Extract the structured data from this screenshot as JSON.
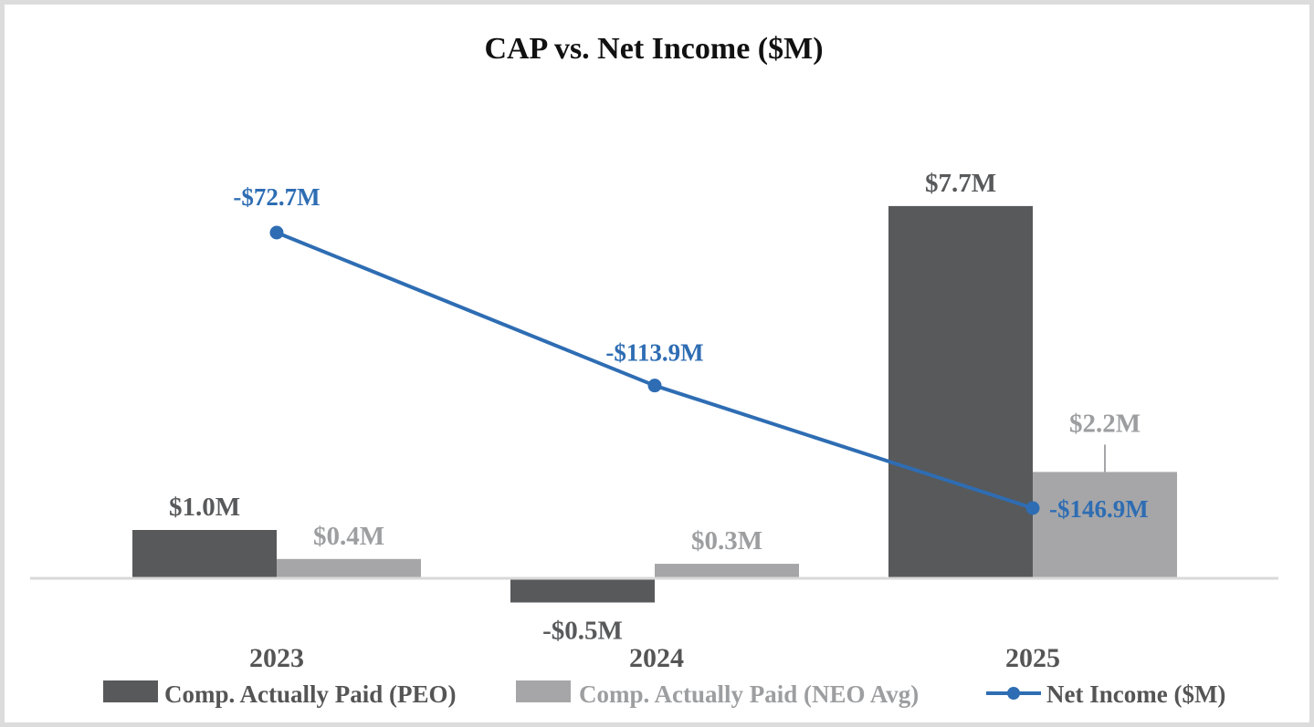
{
  "chart_data": {
    "type": "bar",
    "title": "CAP vs. Net Income ($M)",
    "categories": [
      "2023",
      "2024",
      "2025"
    ],
    "series": [
      {
        "name": "Comp. Actually Paid (PEO)",
        "kind": "bar",
        "color": "#58595b",
        "label_color": "#58595b",
        "values": [
          1.0,
          -0.5,
          7.7
        ],
        "labels": [
          "$1.0M",
          "-$0.5M",
          "$7.7M"
        ]
      },
      {
        "name": "Comp. Actually Paid (NEO Avg)",
        "kind": "bar",
        "color": "#a6a6a8",
        "label_color": "#9d9ea0",
        "values": [
          0.4,
          0.3,
          2.2
        ],
        "labels": [
          "$0.4M",
          "$0.3M",
          "$2.2M"
        ]
      },
      {
        "name": "Net Income ($M)",
        "kind": "line",
        "color": "#2e6db3",
        "label_color": "#2e6db3",
        "values": [
          -72.7,
          -113.9,
          -146.9
        ],
        "labels": [
          "-$72.7M",
          "-$113.9M",
          "-$146.9M"
        ]
      }
    ],
    "bar_ylim": [
      -1.2,
      9.0
    ],
    "line_ylim": [
      -185,
      -50
    ],
    "grid": false,
    "legend": "bottom"
  }
}
